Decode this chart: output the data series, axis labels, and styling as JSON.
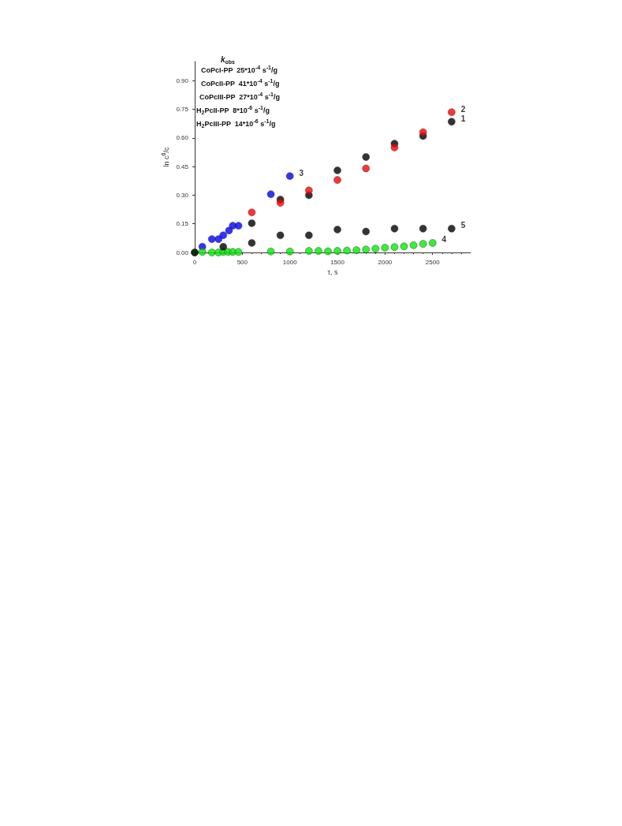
{
  "chart_data": {
    "type": "scatter",
    "xlabel": "τ, s",
    "ylabel": "ln c$^{0}$/c",
    "xlim": [
      0,
      2900
    ],
    "xticks": [
      0,
      500,
      1000,
      1500,
      2000,
      2500
    ],
    "ylim": [
      0,
      1.0
    ],
    "yticks": [
      {
        "value": 0,
        "label": "0.00"
      },
      {
        "value": 0.15,
        "label": "0.15"
      },
      {
        "value": 0.3,
        "label": "0.30"
      },
      {
        "value": 0.45,
        "label": "0.45"
      },
      {
        "value": 0.6,
        "label": "0.60"
      },
      {
        "value": 0.75,
        "label": "0.75"
      },
      {
        "value": 0.9,
        "label": "0.90"
      }
    ],
    "grid": false,
    "marker": "circle",
    "annotations": [
      "k$_{obs}$",
      "CoPcI-PP  25*10$^{-4}$ s$^{-1}$/g",
      "CoPcII-PP  41*10$^{-4}$ s$^{-1}$/g",
      "CoPcIII-PP  27*10$^{-4}$ s$^{-1}$/g",
      "H$_{2}$PcII-PP  8*10$^{-6}$ s$^{-1}$/g",
      "H$_{2}$PcIII-PP  14*10$^{-6}$ s$^{-1}$/g"
    ],
    "series": [
      {
        "name": "1",
        "color": "#000000",
        "x": [
          600,
          900,
          1200,
          1500,
          1800,
          2100,
          2400,
          2700
        ],
        "values": [
          0.153,
          0.277,
          0.3,
          0.43,
          0.5,
          0.57,
          0.61,
          0.685
        ]
      },
      {
        "name": "2",
        "color": "#ff0000",
        "x": [
          600,
          900,
          1200,
          1500,
          1800,
          2100,
          2400,
          2700
        ],
        "values": [
          0.21,
          0.26,
          0.325,
          0.38,
          0.44,
          0.55,
          0.63,
          0.735
        ]
      },
      {
        "name": "3",
        "color": "#0000ff",
        "x": [
          80,
          180,
          250,
          300,
          360,
          400,
          460,
          800,
          1000
        ],
        "values": [
          0.03,
          0.07,
          0.07,
          0.09,
          0.115,
          0.14,
          0.14,
          0.305,
          0.4
        ]
      },
      {
        "name": "4",
        "color": "#00ee00",
        "x": [
          0,
          80,
          180,
          250,
          300,
          350,
          400,
          460,
          800,
          1000,
          1200,
          1300,
          1400,
          1500,
          1600,
          1700,
          1800,
          1900,
          2000,
          2100,
          2200,
          2300,
          2400,
          2500
        ],
        "values": [
          0,
          0.003,
          0,
          0,
          0.003,
          0.003,
          0.003,
          0.003,
          0.005,
          0.005,
          0.008,
          0.008,
          0.006,
          0.008,
          0.01,
          0.012,
          0.016,
          0.02,
          0.025,
          0.028,
          0.032,
          0.038,
          0.045,
          0.05
        ]
      },
      {
        "name": "5",
        "color": "#000000",
        "x": [
          0,
          300,
          600,
          900,
          1200,
          1500,
          1800,
          2100,
          2400,
          2700
        ],
        "values": [
          0,
          0.03,
          0.05,
          0.09,
          0.09,
          0.12,
          0.11,
          0.125,
          0.125,
          0.125
        ]
      }
    ]
  }
}
